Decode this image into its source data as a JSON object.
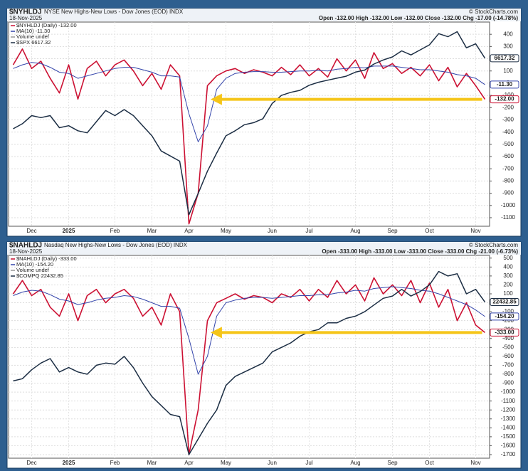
{
  "chart_data": [
    {
      "type": "line",
      "symbol": "$NYHLDJ",
      "title": "NYSE New Highs-New Lows - Dow Jones (EOD) INDX",
      "date": "18-Nov-2025",
      "quote": "Open -132.00  High -132.00  Low -132.00  Close -132.00  Chg -17.00 (-14.78%)",
      "credit": "© StockCharts.com",
      "volume_label": "Volume undef",
      "grid": true,
      "categories": [
        null,
        null,
        "Dec",
        null,
        null,
        null,
        "2025",
        null,
        null,
        null,
        null,
        "Feb",
        null,
        null,
        null,
        "Mar",
        null,
        null,
        null,
        "Apr",
        null,
        null,
        null,
        "May",
        null,
        null,
        null,
        null,
        "Jun",
        null,
        null,
        null,
        "Jul",
        null,
        null,
        null,
        null,
        "Aug",
        null,
        null,
        null,
        "Sep",
        null,
        null,
        null,
        "Oct",
        null,
        null,
        null,
        null,
        "Nov",
        null
      ],
      "ylim": [
        -1170,
        500
      ],
      "yticks": [
        400,
        300,
        200,
        100,
        0,
        -100,
        -200,
        -300,
        -400,
        -500,
        -600,
        -700,
        -800,
        -900,
        -1000,
        -1100
      ],
      "y2lim": [
        4956,
        6975
      ],
      "series": [
        {
          "name": "$NYHLDJ (Daily) -132.00",
          "last_label": "-132.00",
          "color": "#cc1133",
          "width": 1.6,
          "values": [
            150,
            280,
            120,
            180,
            40,
            -80,
            150,
            -130,
            120,
            180,
            60,
            150,
            190,
            100,
            -20,
            80,
            -50,
            150,
            60,
            -1150,
            -900,
            -20,
            60,
            100,
            120,
            80,
            110,
            90,
            60,
            130,
            70,
            150,
            60,
            120,
            50,
            200,
            100,
            190,
            40,
            250,
            120,
            160,
            80,
            130,
            60,
            150,
            20,
            130,
            -30,
            80,
            -20,
            -132
          ]
        },
        {
          "name": "MA(10) -11.30",
          "last_label": "-11.30",
          "color": "#3344aa",
          "width": 1,
          "values": [
            120,
            150,
            170,
            160,
            130,
            90,
            80,
            40,
            60,
            80,
            100,
            120,
            130,
            130,
            110,
            90,
            60,
            60,
            50,
            -250,
            -480,
            -350,
            -50,
            40,
            80,
            90,
            95,
            95,
            90,
            90,
            95,
            100,
            100,
            105,
            100,
            115,
            120,
            130,
            125,
            140,
            140,
            140,
            130,
            120,
            110,
            110,
            100,
            90,
            70,
            60,
            40,
            -11.3
          ]
        },
        {
          "name": "$SPX 6617.32",
          "last_label": "6617.32",
          "color": "#1c2e44",
          "width": 1.5,
          "axis": "y2",
          "values": [
            5920,
            5970,
            6050,
            6030,
            6050,
            5930,
            5950,
            5900,
            5880,
            5990,
            6100,
            6050,
            6110,
            6050,
            5950,
            5850,
            5700,
            5650,
            5600,
            5070,
            5280,
            5500,
            5680,
            5850,
            5900,
            5960,
            5980,
            6020,
            6170,
            6250,
            6280,
            6300,
            6350,
            6380,
            6400,
            6420,
            6440,
            6480,
            6500,
            6560,
            6600,
            6630,
            6690,
            6650,
            6700,
            6750,
            6860,
            6830,
            6880,
            6720,
            6760,
            6617.32
          ]
        }
      ]
    },
    {
      "type": "line",
      "symbol": "$NAHLDJ",
      "title": "Nasdaq New Highs-New Lows - Dow Jones (EOD) INDX",
      "date": "18-Nov-2025",
      "quote": "Open -333.00  High -333.00  Low -333.00  Close -333.00  Chg -21.00 (-6.73%)",
      "credit": "© StockCharts.com",
      "volume_label": "Volume undef",
      "grid": true,
      "categories": [
        null,
        null,
        "Dec",
        null,
        null,
        null,
        "2025",
        null,
        null,
        null,
        null,
        "Feb",
        null,
        null,
        null,
        "Mar",
        null,
        null,
        null,
        "Apr",
        null,
        null,
        null,
        "May",
        null,
        null,
        null,
        null,
        "Jun",
        null,
        null,
        null,
        "Jul",
        null,
        null,
        null,
        null,
        "Aug",
        null,
        null,
        null,
        "Sep",
        null,
        null,
        null,
        "Oct",
        null,
        null,
        null,
        null,
        "Nov",
        null
      ],
      "ylim": [
        -1740,
        530
      ],
      "yticks": [
        500,
        400,
        300,
        200,
        100,
        0,
        -100,
        -200,
        -300,
        -400,
        -500,
        -600,
        -700,
        -800,
        -900,
        -1000,
        -1100,
        -1200,
        -1300,
        -1400,
        -1500,
        -1600,
        -1700
      ],
      "y2lim": [
        15440,
        24520
      ],
      "series": [
        {
          "name": "$NAHLDJ (Daily) -333.00",
          "last_label": "-333.00",
          "color": "#cc1133",
          "width": 1.6,
          "values": [
            100,
            250,
            80,
            150,
            -50,
            -150,
            100,
            -200,
            80,
            150,
            0,
            100,
            150,
            50,
            -150,
            -50,
            -250,
            100,
            -100,
            -1700,
            -1200,
            -200,
            0,
            50,
            100,
            40,
            80,
            60,
            0,
            100,
            60,
            150,
            20,
            150,
            60,
            250,
            100,
            200,
            20,
            280,
            100,
            200,
            80,
            250,
            0,
            220,
            -50,
            150,
            -200,
            0,
            -250,
            -333
          ]
        },
        {
          "name": "MA(10) -154.20",
          "last_label": "-154.20",
          "color": "#3344aa",
          "width": 1,
          "values": [
            80,
            120,
            140,
            130,
            90,
            40,
            20,
            -20,
            0,
            30,
            50,
            60,
            80,
            70,
            40,
            0,
            -40,
            -40,
            -60,
            -400,
            -800,
            -600,
            -150,
            0,
            30,
            50,
            60,
            60,
            50,
            60,
            70,
            80,
            80,
            90,
            90,
            110,
            120,
            140,
            130,
            160,
            170,
            180,
            170,
            160,
            140,
            130,
            100,
            60,
            20,
            -20,
            -80,
            -154.2
          ]
        },
        {
          "name": "$COMPQ 22432.85",
          "last_label": "22432.85",
          "color": "#1c2e44",
          "width": 1.5,
          "axis": "y2",
          "values": [
            18900,
            19000,
            19400,
            19700,
            19900,
            19300,
            19500,
            19300,
            19200,
            19600,
            19700,
            19650,
            20000,
            19500,
            18800,
            18200,
            17800,
            17400,
            17300,
            15600,
            16300,
            17000,
            17600,
            18700,
            19100,
            19300,
            19500,
            19700,
            20200,
            20400,
            20600,
            20900,
            21100,
            21200,
            21500,
            21500,
            21700,
            21800,
            22000,
            22300,
            22600,
            22700,
            23000,
            22700,
            22900,
            23200,
            23800,
            23600,
            23700,
            22800,
            23000,
            22432.85
          ]
        }
      ]
    }
  ]
}
